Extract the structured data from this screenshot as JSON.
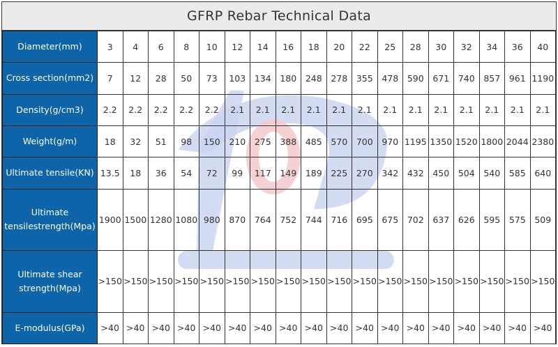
{
  "title": "GFRP Rebar Technical Data",
  "watermark_colors": {
    "blue": "#c9d3f0",
    "pink": "#f3c9cc"
  },
  "label_bg": "#0d64a8",
  "rows": [
    {
      "label": "Diameter(mm)",
      "values": [
        "3",
        "4",
        "6",
        "8",
        "10",
        "12",
        "14",
        "16",
        "18",
        "20",
        "22",
        "25",
        "28",
        "30",
        "32",
        "34",
        "36",
        "40"
      ]
    },
    {
      "label": "Cross section(mm2)",
      "values": [
        "7",
        "12",
        "28",
        "50",
        "73",
        "103",
        "134",
        "180",
        "248",
        "278",
        "355",
        "478",
        "590",
        "671",
        "740",
        "857",
        "961",
        "1190"
      ]
    },
    {
      "label": "Density(g/cm3)",
      "values": [
        "2.2",
        "2.2",
        "2.2",
        "2.2",
        "2.2",
        "2.1",
        "2.1",
        "2.1",
        "2.1",
        "2.1",
        "2.1",
        "2.1",
        "2.1",
        "2.1",
        "2.1",
        "2.1",
        "2.1",
        "2.1"
      ]
    },
    {
      "label": "Weight(g/m)",
      "values": [
        "18",
        "32",
        "51",
        "98",
        "150",
        "210",
        "275",
        "388",
        "485",
        "570",
        "700",
        "970",
        "1195",
        "1350",
        "1520",
        "1800",
        "2044",
        "2380"
      ]
    },
    {
      "label": "Ultimate tensile(KN)",
      "values": [
        "13.5",
        "18",
        "36",
        "54",
        "72",
        "99",
        "117",
        "149",
        "189",
        "225",
        "270",
        "342",
        "432",
        "450",
        "504",
        "540",
        "585",
        "640"
      ]
    },
    {
      "label": "Ultimate tensilestrength(Mpa)",
      "values": [
        "1900",
        "1500",
        "1280",
        "1080",
        "980",
        "870",
        "764",
        "752",
        "744",
        "716",
        "695",
        "675",
        "702",
        "637",
        "626",
        "595",
        "575",
        "509"
      ]
    },
    {
      "label": "Ultimate shear strength(Mpa)",
      "values": [
        ">150",
        ">150",
        ">150",
        ">150",
        ">150",
        ">150",
        ">150",
        ">150",
        ">150",
        ">150",
        ">150",
        ">150",
        ">150",
        ">150",
        ">150",
        ">150",
        ">150",
        ">150"
      ]
    },
    {
      "label": "E-modulus(GPa)",
      "values": [
        ">40",
        ">40",
        ">40",
        ">40",
        ">40",
        ">40",
        ">40",
        ">40",
        ">40",
        ">40",
        ">40",
        ">40",
        ">40",
        ">40",
        ">40",
        ">40",
        ">40",
        ">40"
      ]
    }
  ]
}
